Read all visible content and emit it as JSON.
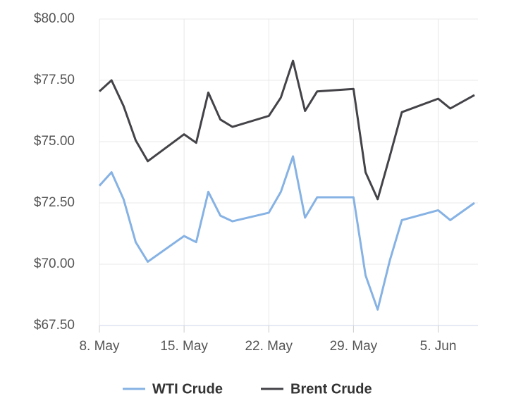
{
  "chart_data": {
    "type": "line",
    "x": [
      "8. May",
      "9. May",
      "10. May",
      "11. May",
      "12. May",
      "15. May",
      "16. May",
      "17. May",
      "18. May",
      "19. May",
      "22. May",
      "23. May",
      "24. May",
      "25. May",
      "26. May",
      "29. May",
      "30. May",
      "31. May",
      "1. Jun",
      "2. Jun",
      "5. Jun",
      "6. Jun",
      "8. Jun"
    ],
    "series": [
      {
        "name": "WTI Crude",
        "color": "#86b2e4",
        "values": [
          73.2,
          73.75,
          72.65,
          70.9,
          70.1,
          71.15,
          70.9,
          72.95,
          71.98,
          71.75,
          72.1,
          72.95,
          74.4,
          71.9,
          72.73,
          72.73,
          69.55,
          68.15,
          70.15,
          71.8,
          72.2,
          71.8,
          72.5
        ]
      },
      {
        "name": "Brent Crude",
        "color": "#434348",
        "values": [
          77.05,
          77.5,
          76.45,
          75.05,
          74.2,
          75.3,
          74.95,
          77.0,
          75.9,
          75.6,
          76.05,
          76.8,
          78.3,
          76.25,
          77.05,
          77.15,
          73.75,
          72.65,
          74.4,
          76.2,
          76.75,
          76.35,
          76.9
        ]
      }
    ],
    "xlim": [
      "8. May",
      "8. Jun"
    ],
    "xticks": [
      "8. May",
      "15. May",
      "22. May",
      "29. May",
      "5. Jun"
    ],
    "ylim": [
      67.5,
      80
    ],
    "yticks": [
      {
        "value": 67.5,
        "label": "$67.50"
      },
      {
        "value": 70,
        "label": "$70.00"
      },
      {
        "value": 72.5,
        "label": "$72.50"
      },
      {
        "value": 75,
        "label": "$75.00"
      },
      {
        "value": 77.5,
        "label": "$77.50"
      },
      {
        "value": 80,
        "label": "$80.00"
      }
    ],
    "grid": true,
    "legend": "bottom"
  }
}
